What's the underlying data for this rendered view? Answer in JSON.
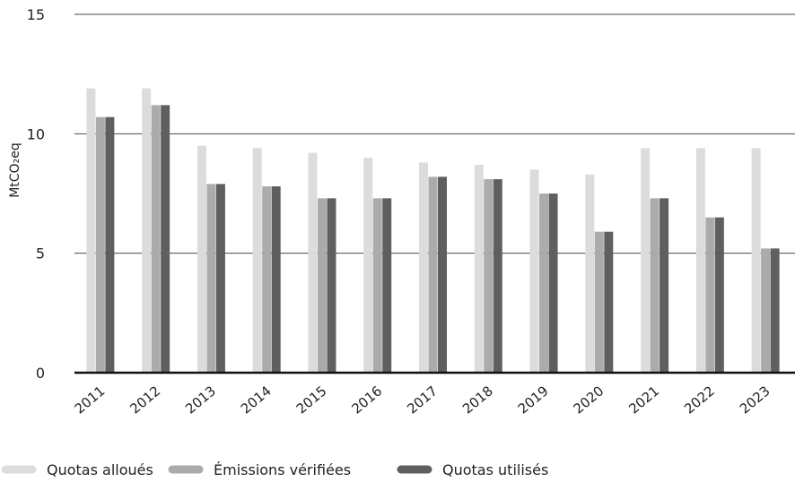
{
  "chart_data": {
    "type": "bar",
    "title": "",
    "xlabel": "",
    "ylabel": "MtCO₂eq",
    "ylim": [
      0,
      15
    ],
    "yticks": [
      0,
      5,
      10,
      15
    ],
    "grid": true,
    "legend_position": "bottom-left",
    "categories": [
      "2011",
      "2012",
      "2013",
      "2014",
      "2015",
      "2016",
      "2017",
      "2018",
      "2019",
      "2020",
      "2021",
      "2022",
      "2023"
    ],
    "series": [
      {
        "name": "Quotas alloués",
        "color": "#dcdcdc",
        "values": [
          11.9,
          11.9,
          9.5,
          9.4,
          9.2,
          9.0,
          8.8,
          8.7,
          8.5,
          8.3,
          9.4,
          9.4,
          9.4
        ]
      },
      {
        "name": "Émissions vérifiées",
        "color": "#ababab",
        "values": [
          10.7,
          11.2,
          7.9,
          7.8,
          7.3,
          7.3,
          8.2,
          8.1,
          7.5,
          5.9,
          7.3,
          6.5,
          5.2
        ]
      },
      {
        "name": "Quotas utilisés",
        "color": "#5f5f5f",
        "values": [
          10.7,
          11.2,
          7.9,
          7.8,
          7.3,
          7.3,
          8.2,
          8.1,
          7.5,
          5.9,
          7.3,
          6.5,
          5.2
        ]
      }
    ]
  }
}
